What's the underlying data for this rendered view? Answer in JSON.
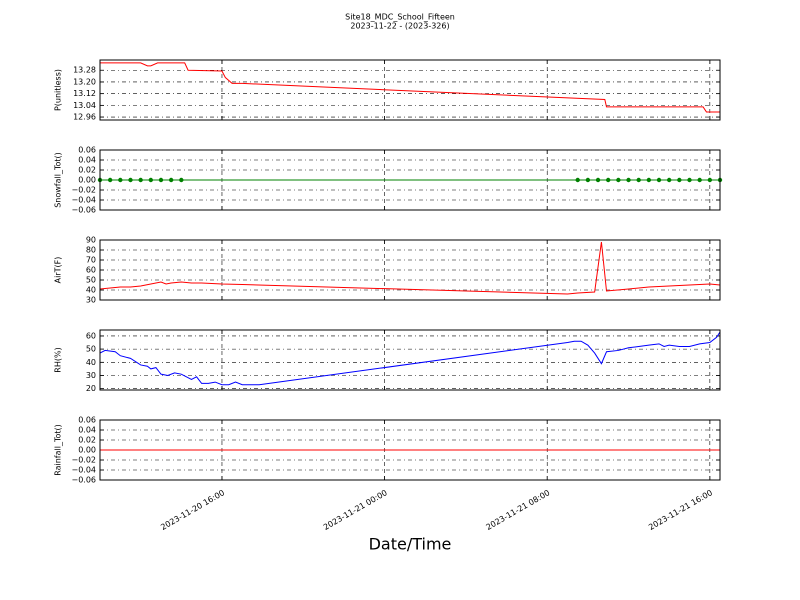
{
  "title": "Site18_MDC_School_Fifteen",
  "subtitle": "2023-11-22 - (2023-326)",
  "xlabel": "Date/Time",
  "xlim": [
    "2023-11-20 10:00",
    "2023-11-21 16:30"
  ],
  "xticks": [
    "2023-11-20 16:00",
    "2023-11-21 00:00",
    "2023-11-21 08:00",
    "2023-11-21 16:00"
  ],
  "chart_data": [
    {
      "type": "line",
      "ylabel": "P(unitless)",
      "ylim": [
        12.94,
        13.35
      ],
      "yticks": [
        12.96,
        13.04,
        13.12,
        {
          "value": 13.2,
          "label": "13.20"
        },
        13.28
      ],
      "x": [
        "2023-11-20 10:00",
        "2023-11-20 12:00",
        "2023-11-20 12:20",
        "2023-11-20 12:30",
        "2023-11-20 12:50",
        "2023-11-20 14:10",
        "2023-11-20 14:20",
        "2023-11-20 16:00",
        "2023-11-20 16:10",
        "2023-11-20 16:30",
        "2023-11-20 17:00",
        "2023-11-21 10:50",
        "2023-11-21 10:55",
        "2023-11-21 15:40",
        "2023-11-21 15:50",
        "2023-11-21 16:30"
      ],
      "series": [
        {
          "color": "#ff0000",
          "values": [
            13.33,
            13.33,
            13.31,
            13.31,
            13.33,
            13.33,
            13.28,
            13.275,
            13.23,
            13.19,
            13.19,
            13.08,
            13.03,
            13.03,
            12.995,
            12.995
          ]
        }
      ]
    },
    {
      "type": "line",
      "ylabel": "Snowfall_Tot()",
      "ylim": [
        -0.06,
        0.06
      ],
      "yticks": [
        {
          "value": -0.06,
          "label": "−0.06"
        },
        {
          "value": -0.04,
          "label": "−0.04"
        },
        {
          "value": -0.02,
          "label": "−0.02"
        },
        {
          "value": 0,
          "label": "0.00"
        },
        {
          "value": 0.02,
          "label": "0.02"
        },
        {
          "value": 0.04,
          "label": "0.04"
        },
        {
          "value": 0.06,
          "label": "0.06"
        }
      ],
      "x": [
        "2023-11-20 10:00",
        "2023-11-20 10:30",
        "2023-11-20 11:00",
        "2023-11-20 11:30",
        "2023-11-20 12:00",
        "2023-11-20 12:30",
        "2023-11-20 13:00",
        "2023-11-20 13:30",
        "2023-11-20 14:00",
        "2023-11-21 09:30",
        "2023-11-21 10:00",
        "2023-11-21 10:30",
        "2023-11-21 11:00",
        "2023-11-21 11:30",
        "2023-11-21 12:00",
        "2023-11-21 12:30",
        "2023-11-21 13:00",
        "2023-11-21 13:30",
        "2023-11-21 14:00",
        "2023-11-21 14:30",
        "2023-11-21 15:00",
        "2023-11-21 15:30",
        "2023-11-21 16:00",
        "2023-11-21 16:30"
      ],
      "series": [
        {
          "color": "#008000",
          "marker": "o",
          "values": [
            0,
            0,
            0,
            0,
            0,
            0,
            0,
            0,
            0,
            0,
            0,
            0,
            0,
            0,
            0,
            0,
            0,
            0,
            0,
            0,
            0,
            0,
            0,
            0
          ]
        }
      ]
    },
    {
      "type": "line",
      "ylabel": "AirT(F)",
      "ylim": [
        30,
        90
      ],
      "yticks": [
        30,
        40,
        50,
        60,
        70,
        80,
        90
      ],
      "x": [
        "2023-11-20 10:00",
        "2023-11-20 10:30",
        "2023-11-20 11:00",
        "2023-11-20 11:30",
        "2023-11-20 12:00",
        "2023-11-20 12:30",
        "2023-11-20 13:00",
        "2023-11-20 13:15",
        "2023-11-20 13:30",
        "2023-11-20 14:00",
        "2023-11-20 14:30",
        "2023-11-20 15:00",
        "2023-11-20 16:00",
        "2023-11-20 17:00",
        "2023-11-21 09:00",
        "2023-11-21 09:30",
        "2023-11-21 10:20",
        "2023-11-21 10:40",
        "2023-11-21 10:55",
        "2023-11-21 12:00",
        "2023-11-21 13:00",
        "2023-11-21 14:00",
        "2023-11-21 15:00",
        "2023-11-21 16:00",
        "2023-11-21 16:30"
      ],
      "series": [
        {
          "color": "#ff0000",
          "values": [
            41,
            42,
            43,
            43,
            44,
            46,
            48,
            46,
            47,
            48,
            47,
            47,
            46,
            45.5,
            36,
            37,
            38,
            88,
            39,
            41,
            43,
            44,
            45,
            46,
            45
          ]
        }
      ]
    },
    {
      "type": "line",
      "ylabel": "RH(%)",
      "ylim": [
        19,
        64.5
      ],
      "yticks": [
        20,
        30,
        40,
        50,
        60
      ],
      "x": [
        "2023-11-20 10:00",
        "2023-11-20 10:15",
        "2023-11-20 10:45",
        "2023-11-20 11:00",
        "2023-11-20 11:30",
        "2023-11-20 12:00",
        "2023-11-20 12:20",
        "2023-11-20 12:30",
        "2023-11-20 12:45",
        "2023-11-20 13:00",
        "2023-11-20 13:20",
        "2023-11-20 13:40",
        "2023-11-20 14:00",
        "2023-11-20 14:30",
        "2023-11-20 14:45",
        "2023-11-20 15:00",
        "2023-11-20 15:20",
        "2023-11-20 15:40",
        "2023-11-20 16:00",
        "2023-11-20 16:20",
        "2023-11-20 16:40",
        "2023-11-20 17:00",
        "2023-11-20 17:50",
        "2023-11-21 09:00",
        "2023-11-21 09:20",
        "2023-11-21 09:40",
        "2023-11-21 10:00",
        "2023-11-21 10:20",
        "2023-11-21 10:40",
        "2023-11-21 10:55",
        "2023-11-21 11:30",
        "2023-11-21 12:00",
        "2023-11-21 12:30",
        "2023-11-21 13:00",
        "2023-11-21 13:30",
        "2023-11-21 13:45",
        "2023-11-21 14:00",
        "2023-11-21 14:30",
        "2023-11-21 15:00",
        "2023-11-21 15:30",
        "2023-11-21 16:00",
        "2023-11-21 16:20",
        "2023-11-21 16:30"
      ],
      "series": [
        {
          "color": "#0000ff",
          "values": [
            47,
            49,
            48,
            45,
            43,
            38,
            37,
            35,
            36,
            31,
            30,
            32,
            31,
            27,
            29,
            24,
            24,
            25,
            23,
            23,
            25,
            23,
            23,
            55,
            56,
            56,
            53,
            47,
            39,
            48,
            49,
            51,
            52,
            53,
            54,
            52,
            53,
            52,
            52,
            54,
            55,
            59,
            63
          ]
        }
      ]
    },
    {
      "type": "line",
      "ylabel": "Rainfall_Tot()",
      "ylim": [
        -0.06,
        0.06
      ],
      "yticks": [
        {
          "value": -0.06,
          "label": "−0.06"
        },
        {
          "value": -0.04,
          "label": "−0.04"
        },
        {
          "value": -0.02,
          "label": "−0.02"
        },
        {
          "value": 0,
          "label": "0.00"
        },
        {
          "value": 0.02,
          "label": "0.02"
        },
        {
          "value": 0.04,
          "label": "0.04"
        },
        {
          "value": 0.06,
          "label": "0.06"
        }
      ],
      "x": [
        "2023-11-20 10:00",
        "2023-11-20 14:00",
        "2023-11-21 09:30",
        "2023-11-21 16:30"
      ],
      "series": [
        {
          "color": "#ff0000",
          "values": [
            0,
            0,
            0,
            0
          ]
        }
      ]
    }
  ]
}
